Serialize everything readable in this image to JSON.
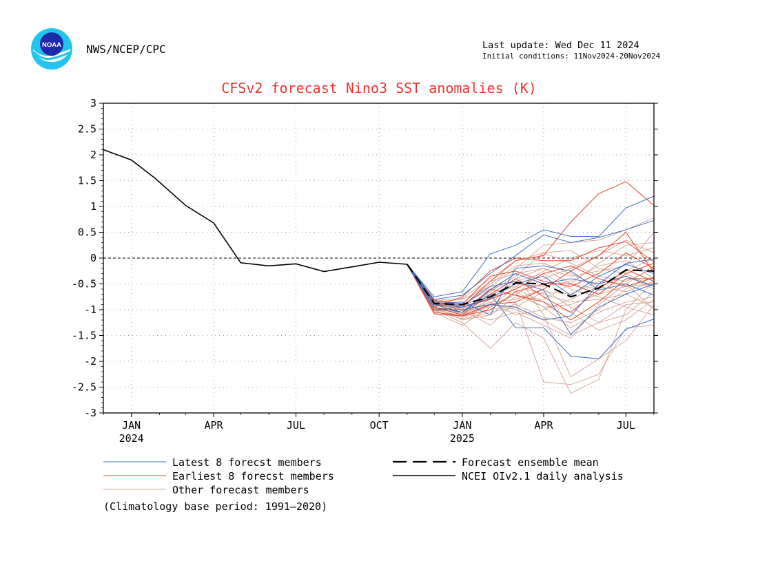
{
  "header": {
    "agency": "NWS/NCEP/CPC",
    "last_update": "Last update: Wed Dec 11 2024",
    "initial_conditions": "Initial conditions: 11Nov2024-20Nov2024",
    "logo_text": "NOAA"
  },
  "legend": {
    "latest": "Latest 8 forecst members",
    "earliest": "Earliest 8 forecst members",
    "other": "Other forecast members",
    "mean": "Forecast ensemble mean",
    "analysis": "NCEI OIv2.1 daily analysis"
  },
  "footnote": "(Climatology base period: 1991—2020)",
  "colors": {
    "latest": "#3b6fc4",
    "earliest": "#e8452c",
    "other": "#d9a99a",
    "title": "#e8372c"
  },
  "chart_data": {
    "type": "line",
    "title": "CFSv2 forecast Nino3 SST anomalies (K)",
    "ylim": [
      -3,
      3
    ],
    "xlim": [
      "2023-12-15",
      "2025-08-15"
    ],
    "yticks": [
      "3",
      "2.5",
      "2",
      "1.5",
      "1",
      "0.5",
      "0",
      "-0.5",
      "-1",
      "-1.5",
      "-2",
      "-2.5",
      "-3"
    ],
    "xticks": [
      {
        "date": "2024-01-15",
        "label": "JAN",
        "year": "2024"
      },
      {
        "date": "2024-04-15",
        "label": "APR",
        "year": ""
      },
      {
        "date": "2024-07-15",
        "label": "JUL",
        "year": ""
      },
      {
        "date": "2024-10-15",
        "label": "OCT",
        "year": ""
      },
      {
        "date": "2025-01-15",
        "label": "JAN",
        "year": "2025"
      },
      {
        "date": "2025-04-15",
        "label": "APR",
        "year": ""
      },
      {
        "date": "2025-07-15",
        "label": "JUL",
        "year": ""
      }
    ],
    "grid": true,
    "legend_position": "bottom",
    "analysis": {
      "name": "NCEI OIv2.1 daily analysis",
      "points": [
        [
          "2023-12-15",
          2.1
        ],
        [
          "2024-01-15",
          1.9
        ],
        [
          "2024-02-10",
          1.55
        ],
        [
          "2024-03-15",
          1.02
        ],
        [
          "2024-04-15",
          0.68
        ],
        [
          "2024-05-15",
          -0.09
        ],
        [
          "2024-06-15",
          -0.15
        ],
        [
          "2024-07-15",
          -0.11
        ],
        [
          "2024-08-15",
          -0.26
        ],
        [
          "2024-09-15",
          -0.17
        ],
        [
          "2024-10-15",
          -0.08
        ],
        [
          "2024-11-15",
          -0.12
        ]
      ]
    },
    "forecast_months": [
      "2024-11-15",
      "2024-12-15",
      "2025-01-15",
      "2025-02-15",
      "2025-03-15",
      "2025-04-15",
      "2025-05-15",
      "2025-06-15",
      "2025-07-15",
      "2025-08-15"
    ],
    "ensemble_mean": {
      "name": "Forecast ensemble mean",
      "values": [
        -0.12,
        -0.88,
        -0.9,
        -0.75,
        -0.48,
        -0.5,
        -0.75,
        -0.58,
        -0.23,
        -0.25
      ]
    },
    "latest_members": {
      "name": "Latest 8 forecst members",
      "members": [
        [
          -0.12,
          -0.75,
          -0.65,
          0.08,
          0.25,
          0.55,
          0.42,
          0.42,
          0.97,
          1.2
        ],
        [
          -0.12,
          -0.8,
          -0.72,
          -0.3,
          0.05,
          0.45,
          0.3,
          0.4,
          0.55,
          0.73
        ],
        [
          -0.12,
          -0.95,
          -1.05,
          -0.7,
          -1.35,
          -1.35,
          -1.9,
          -1.95,
          -1.38,
          -1.18
        ],
        [
          -0.12,
          -0.85,
          -0.92,
          -0.55,
          -0.45,
          -0.62,
          -1.48,
          -0.95,
          -0.7,
          -0.5
        ],
        [
          -0.12,
          -0.9,
          -0.95,
          -0.78,
          -0.5,
          -0.35,
          -0.72,
          -0.35,
          -0.12,
          -0.3
        ],
        [
          -0.12,
          -0.9,
          -1.05,
          -0.62,
          -0.3,
          -0.5,
          -0.4,
          -0.5,
          -0.35,
          -0.55
        ],
        [
          -0.12,
          -1.0,
          -1.0,
          -0.9,
          -0.95,
          -1.2,
          -1.12,
          -0.5,
          -0.1,
          -0.02
        ],
        [
          -0.12,
          -0.88,
          -0.85,
          -1.1,
          -0.2,
          -0.15,
          -0.25,
          -0.62,
          -0.5,
          -0.72
        ]
      ]
    },
    "earliest_members": {
      "name": "Earliest 8 forecst members",
      "members": [
        [
          -0.12,
          -0.85,
          -0.95,
          -0.45,
          -0.05,
          0.05,
          0.7,
          1.25,
          1.48,
          1.02
        ],
        [
          -0.12,
          -0.95,
          -0.75,
          -0.25,
          0.0,
          -0.05,
          -0.05,
          0.2,
          0.32,
          -0.08
        ],
        [
          -0.12,
          -1.05,
          -1.12,
          -0.9,
          -0.85,
          -0.6,
          -0.25,
          0.05,
          0.5,
          -0.28
        ],
        [
          -0.12,
          -0.9,
          -1.05,
          -0.6,
          -0.72,
          -0.85,
          -1.2,
          -0.85,
          -0.4,
          -0.4
        ],
        [
          -0.12,
          -0.82,
          -0.9,
          -0.35,
          -0.25,
          -0.45,
          -0.55,
          -0.3,
          0.1,
          -0.2
        ],
        [
          -0.12,
          -1.0,
          -0.95,
          -0.8,
          -0.6,
          -0.3,
          -0.15,
          -0.4,
          -0.55,
          -0.38
        ],
        [
          -0.12,
          -1.08,
          -1.12,
          -1.0,
          -0.65,
          -0.5,
          -0.5,
          -0.7,
          -0.3,
          -0.1
        ],
        [
          -0.12,
          -0.95,
          -1.1,
          -0.7,
          -0.4,
          -0.75,
          -1.05,
          -0.6,
          -0.22,
          -0.45
        ]
      ]
    },
    "other_members": {
      "name": "Other forecast members",
      "members": [
        [
          -0.12,
          -0.9,
          -1.0,
          -1.3,
          -0.85,
          -2.4,
          -2.45,
          -2.25,
          -1.35,
          -1.3
        ],
        [
          -0.12,
          -1.0,
          -1.25,
          -1.75,
          -1.25,
          -1.55,
          -2.62,
          -2.35,
          -1.0,
          -0.45
        ],
        [
          -0.12,
          -0.85,
          -0.8,
          -0.55,
          -0.2,
          0.25,
          0.3,
          0.35,
          0.55,
          0.78
        ],
        [
          -0.12,
          -0.8,
          -0.9,
          -0.6,
          -0.3,
          -1.1,
          -2.3,
          -1.95,
          -1.6,
          -0.9
        ],
        [
          -0.12,
          -0.95,
          -1.2,
          -1.1,
          -0.75,
          -0.8,
          -0.5,
          -0.1,
          0.25,
          0.3
        ],
        [
          -0.12,
          -0.9,
          -1.05,
          -0.85,
          -1.1,
          -1.0,
          -0.8,
          -0.55,
          -0.65,
          -0.45
        ],
        [
          -0.12,
          -1.05,
          -1.3,
          -0.95,
          -0.55,
          -0.25,
          0.0,
          0.15,
          0.05,
          0.2
        ],
        [
          -0.12,
          -0.88,
          -0.95,
          -0.75,
          -0.65,
          -0.95,
          -1.35,
          -1.05,
          -0.85,
          -0.75
        ],
        [
          -0.12,
          -0.98,
          -1.15,
          -0.9,
          -0.4,
          -0.2,
          -0.35,
          -0.25,
          -0.15,
          0.5
        ],
        [
          -0.12,
          -0.82,
          -0.78,
          -0.4,
          -0.05,
          0.1,
          -0.1,
          -0.35,
          -0.45,
          -0.2
        ],
        [
          -0.12,
          -1.0,
          -1.05,
          -1.2,
          -1.05,
          -1.3,
          -1.55,
          -0.9,
          -0.5,
          -1.0
        ],
        [
          -0.12,
          -0.9,
          -0.92,
          -0.7,
          -0.55,
          -0.7,
          -0.85,
          -0.8,
          -0.7,
          -0.95
        ],
        [
          -0.12,
          -0.95,
          -1.1,
          -0.85,
          -0.8,
          -0.6,
          -0.95,
          -1.25,
          -1.1,
          -0.65
        ],
        [
          -0.12,
          -0.85,
          -1.0,
          -0.65,
          -0.35,
          0.1,
          0.15,
          -0.2,
          -0.3,
          -0.55
        ],
        [
          -0.12,
          -1.02,
          -1.18,
          -1.0,
          -0.9,
          -1.15,
          -1.25,
          -1.0,
          -0.6,
          -0.35
        ],
        [
          -0.12,
          -0.92,
          -0.9,
          -0.6,
          -0.45,
          -0.3,
          -0.6,
          -0.75,
          -0.95,
          -1.1
        ],
        [
          -0.12,
          -0.88,
          -1.02,
          -0.95,
          -0.7,
          -0.4,
          -0.2,
          0.05,
          0.35,
          0.1
        ],
        [
          -0.12,
          -0.96,
          -1.08,
          -0.8,
          -0.6,
          -0.85,
          -1.05,
          -1.4,
          -1.2,
          -0.8
        ],
        [
          -0.12,
          -0.86,
          -0.96,
          -0.5,
          -0.15,
          -0.1,
          -0.3,
          -0.55,
          -0.35,
          -0.6
        ],
        [
          -0.12,
          -0.94,
          -1.2,
          -1.05,
          -0.95,
          -0.65,
          -0.7,
          -0.45,
          -0.5,
          -0.15
        ],
        [
          -0.12,
          -0.9,
          -0.98,
          -0.72,
          -0.5,
          -0.55,
          -0.45,
          -0.15,
          -0.05,
          -0.4
        ],
        [
          -0.12,
          -1.0,
          -1.12,
          -0.88,
          -1.0,
          -1.2,
          -1.5,
          -1.25,
          -0.9,
          -0.85
        ],
        [
          -0.12,
          -0.84,
          -0.88,
          -0.45,
          -0.3,
          -0.2,
          -0.5,
          -0.6,
          -0.25,
          0.0
        ],
        [
          -0.12,
          -0.97,
          -1.15,
          -0.92,
          -0.7,
          -0.95,
          -0.9,
          -0.7,
          -0.55,
          -0.5
        ]
      ]
    }
  }
}
